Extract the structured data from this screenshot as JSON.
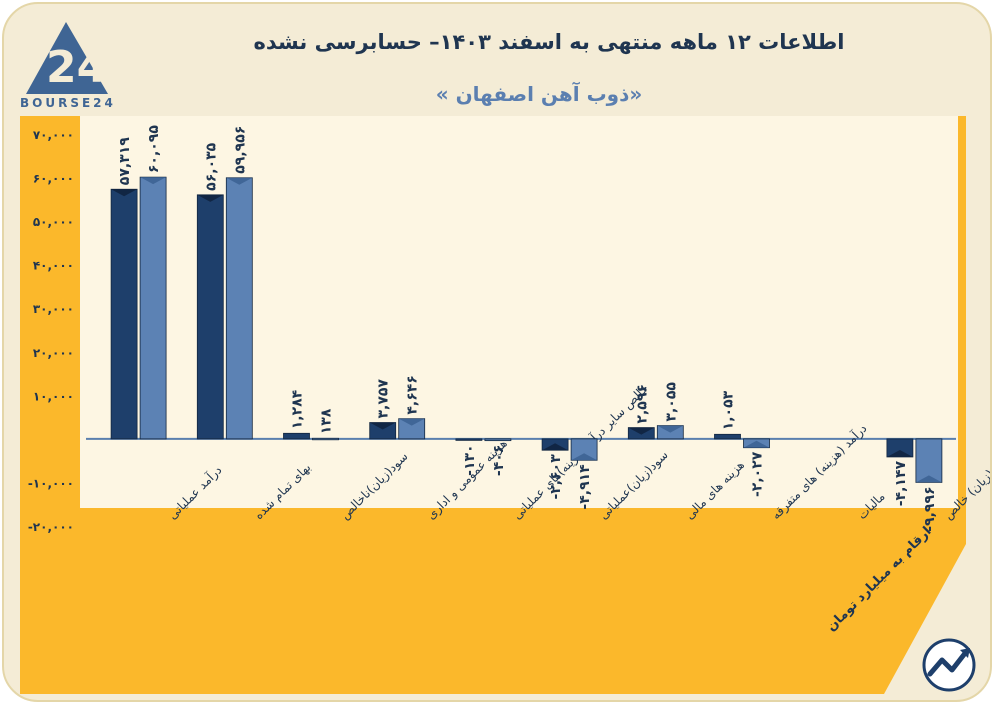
{
  "header": {
    "title": "اطلاعات ۱۲ ماهه منتهی به اسفند ۱۴۰۳– حسابرسی نشده",
    "subtitle": "«ذوب آهن اصفهان »",
    "brand": "BOURSE24",
    "logo_text": "24",
    "note": "ارقام به میلیارد تومان"
  },
  "colors": {
    "plot_bg": "#fbb82b",
    "series_dark": "#1e3f6b",
    "series_light": "#5c82b4",
    "text_dark": "#1f3550",
    "frame_bg": "#f4ecd6",
    "axis_line": "#5a7fae"
  },
  "chart_data": {
    "type": "bar",
    "categories": [
      "درآمد عملیاتی",
      "بهای تمام شده",
      "سود(زیان)ناخالص",
      "هزینه عمومی و اداری",
      "خالص سایر درآمد(هزینه)های عملیاتی",
      "سود(زیان)عملیاتی",
      "هزینه های مالی",
      "درآمد (هزینه) های متفرقه",
      "مالیات",
      "سود(زیان) خالص"
    ],
    "series": [
      {
        "values": [
          57319,
          56035,
          1284,
          3757,
          -130,
          -2603,
          2596,
          1053,
          null,
          -4147
        ]
      },
      {
        "values": [
          60095,
          59956,
          138,
          4646,
          -406,
          -4914,
          3055,
          -2027,
          null,
          -9996
        ]
      }
    ],
    "value_labels": [
      [
        "۵۷,۳۱۹",
        "۵۶,۰۳۵",
        "۱,۲۸۴",
        "۳,۷۵۷",
        "-۱۳۰",
        "-۲,۶۰۳",
        "۲,۵۹۶",
        "۱,۰۵۳",
        "",
        "-۴,۱۴۷"
      ],
      [
        "۶۰,۰۹۵",
        "۵۹,۹۵۶",
        "۱۳۸",
        "۴,۶۴۶",
        "-۴۰۶",
        "-۴,۹۱۴",
        "۳,۰۵۵",
        "-۲,۰۲۷",
        "",
        "-۹,۹۹۶"
      ]
    ],
    "y_ticks": [
      70000,
      60000,
      50000,
      40000,
      30000,
      20000,
      10000,
      0,
      -10000,
      -20000
    ],
    "y_tick_labels": [
      "۷۰,۰۰۰",
      "۶۰,۰۰۰",
      "۵۰,۰۰۰",
      "۴۰,۰۰۰",
      "۳۰,۰۰۰",
      "۲۰,۰۰۰",
      "۱۰,۰۰۰",
      "",
      "-۱۰,۰۰۰",
      "-۲۰,۰۰۰"
    ],
    "ylim": [
      -20000,
      70000
    ],
    "grid": false,
    "legend": "none"
  }
}
